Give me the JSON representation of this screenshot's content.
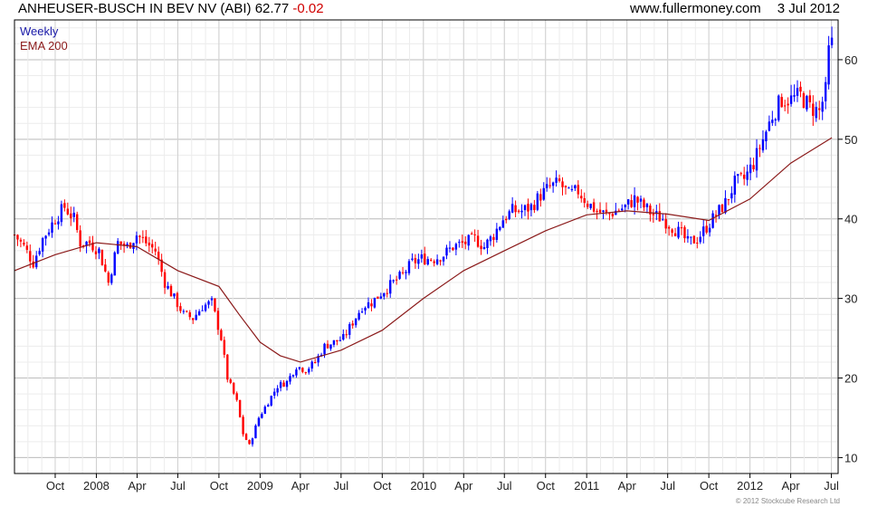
{
  "header": {
    "title": "ANHEUSER-BUSCH IN BEV NV (ABI) 62.77",
    "change": "-0.02",
    "site": "www.fullermoney.com",
    "date": "3 Jul 2012"
  },
  "copyright": "© 2012 Stockcube Research Ltd",
  "colors": {
    "up": "#0000ff",
    "down": "#ff0000",
    "ema": "#8b1a1a",
    "grid": "#d9d9d9",
    "frame": "#000000"
  },
  "chart_data": {
    "type": "candlestick",
    "interval": "Weekly",
    "grid": true,
    "legend_position": "top-left",
    "y_axis_side": "right",
    "ylim": [
      8,
      65
    ],
    "y_ticks": [
      10,
      20,
      30,
      40,
      50,
      60
    ],
    "x_range": [
      "2007-07-02",
      "2012-07-16"
    ],
    "x_ticks": [
      {
        "date": "2007-10-01",
        "label": "Oct"
      },
      {
        "date": "2008-01-01",
        "label": "2008"
      },
      {
        "date": "2008-04-01",
        "label": "Apr"
      },
      {
        "date": "2008-07-01",
        "label": "Jul"
      },
      {
        "date": "2008-10-01",
        "label": "Oct"
      },
      {
        "date": "2009-01-01",
        "label": "2009"
      },
      {
        "date": "2009-04-01",
        "label": "Apr"
      },
      {
        "date": "2009-07-01",
        "label": "Jul"
      },
      {
        "date": "2009-10-01",
        "label": "Oct"
      },
      {
        "date": "2010-01-01",
        "label": "2010"
      },
      {
        "date": "2010-04-01",
        "label": "Apr"
      },
      {
        "date": "2010-07-01",
        "label": "Jul"
      },
      {
        "date": "2010-10-01",
        "label": "Oct"
      },
      {
        "date": "2011-01-01",
        "label": "2011"
      },
      {
        "date": "2011-04-01",
        "label": "Apr"
      },
      {
        "date": "2011-07-01",
        "label": "Jul"
      },
      {
        "date": "2011-10-01",
        "label": "Oct"
      },
      {
        "date": "2012-01-01",
        "label": "2012"
      },
      {
        "date": "2012-04-01",
        "label": "Apr"
      },
      {
        "date": "2012-07-01",
        "label": "Jul"
      }
    ],
    "series": [
      {
        "name": "Weekly",
        "kind": "close",
        "points": [
          [
            "2007-07-02",
            38.0
          ],
          [
            "2007-07-23",
            36.5
          ],
          [
            "2007-08-13",
            34.5
          ],
          [
            "2007-09-03",
            37.5
          ],
          [
            "2007-10-01",
            40.0
          ],
          [
            "2007-10-22",
            41.5
          ],
          [
            "2007-11-12",
            40.0
          ],
          [
            "2007-11-26",
            37.0
          ],
          [
            "2007-12-17",
            37.0
          ],
          [
            "2008-01-07",
            36.0
          ],
          [
            "2008-01-28",
            32.0
          ],
          [
            "2008-02-18",
            37.0
          ],
          [
            "2008-03-10",
            36.5
          ],
          [
            "2008-03-31",
            38.0
          ],
          [
            "2008-04-21",
            37.0
          ],
          [
            "2008-05-12",
            36.0
          ],
          [
            "2008-06-02",
            32.0
          ],
          [
            "2008-06-23",
            30.0
          ],
          [
            "2008-07-14",
            28.0
          ],
          [
            "2008-08-04",
            27.5
          ],
          [
            "2008-08-25",
            29.0
          ],
          [
            "2008-09-15",
            29.5
          ],
          [
            "2008-10-06",
            25.0
          ],
          [
            "2008-10-20",
            20.0
          ],
          [
            "2008-11-10",
            17.0
          ],
          [
            "2008-11-24",
            13.0
          ],
          [
            "2008-12-08",
            11.5
          ],
          [
            "2008-12-29",
            15.0
          ],
          [
            "2009-01-19",
            17.0
          ],
          [
            "2009-02-09",
            19.0
          ],
          [
            "2009-03-02",
            19.5
          ],
          [
            "2009-03-23",
            21.5
          ],
          [
            "2009-04-13",
            21.0
          ],
          [
            "2009-05-04",
            22.0
          ],
          [
            "2009-05-25",
            24.0
          ],
          [
            "2009-06-15",
            24.5
          ],
          [
            "2009-07-06",
            25.0
          ],
          [
            "2009-07-27",
            27.0
          ],
          [
            "2009-08-17",
            29.0
          ],
          [
            "2009-09-07",
            29.5
          ],
          [
            "2009-10-05",
            31.0
          ],
          [
            "2009-10-26",
            32.0
          ],
          [
            "2009-11-16",
            33.0
          ],
          [
            "2009-12-07",
            34.5
          ],
          [
            "2009-12-28",
            35.0
          ],
          [
            "2010-01-25",
            35.0
          ],
          [
            "2010-02-15",
            35.5
          ],
          [
            "2010-03-08",
            36.5
          ],
          [
            "2010-04-05",
            37.0
          ],
          [
            "2010-04-26",
            37.5
          ],
          [
            "2010-05-17",
            36.5
          ],
          [
            "2010-06-07",
            38.0
          ],
          [
            "2010-06-28",
            40.0
          ],
          [
            "2010-07-19",
            41.0
          ],
          [
            "2010-08-09",
            41.0
          ],
          [
            "2010-08-30",
            41.5
          ],
          [
            "2010-09-20",
            43.0
          ],
          [
            "2010-10-11",
            44.0
          ],
          [
            "2010-11-01",
            44.5
          ],
          [
            "2010-11-22",
            43.0
          ],
          [
            "2010-12-13",
            43.5
          ],
          [
            "2011-01-03",
            42.0
          ],
          [
            "2011-01-24",
            41.0
          ],
          [
            "2011-02-14",
            40.5
          ],
          [
            "2011-03-07",
            41.0
          ],
          [
            "2011-03-28",
            41.5
          ],
          [
            "2011-04-18",
            42.5
          ],
          [
            "2011-05-09",
            41.5
          ],
          [
            "2011-05-30",
            40.5
          ],
          [
            "2011-06-20",
            40.0
          ],
          [
            "2011-07-11",
            39.0
          ],
          [
            "2011-08-01",
            38.0
          ],
          [
            "2011-08-15",
            37.0
          ],
          [
            "2011-09-05",
            37.5
          ],
          [
            "2011-09-26",
            39.0
          ],
          [
            "2011-10-17",
            40.5
          ],
          [
            "2011-11-07",
            42.0
          ],
          [
            "2011-11-28",
            44.5
          ],
          [
            "2011-12-19",
            45.0
          ],
          [
            "2012-01-09",
            47.0
          ],
          [
            "2012-01-30",
            50.0
          ],
          [
            "2012-02-20",
            53.0
          ],
          [
            "2012-03-12",
            55.0
          ],
          [
            "2012-04-02",
            55.0
          ],
          [
            "2012-04-23",
            55.5
          ],
          [
            "2012-05-14",
            54.0
          ],
          [
            "2012-06-04",
            53.5
          ],
          [
            "2012-06-18",
            56.0
          ],
          [
            "2012-06-25",
            61.0
          ],
          [
            "2012-07-02",
            62.77
          ]
        ]
      },
      {
        "name": "EMA 200",
        "kind": "line",
        "points": [
          [
            "2007-07-02",
            33.5
          ],
          [
            "2007-10-01",
            35.5
          ],
          [
            "2008-01-01",
            37.0
          ],
          [
            "2008-04-01",
            36.5
          ],
          [
            "2008-07-01",
            33.5
          ],
          [
            "2008-10-01",
            31.5
          ],
          [
            "2008-11-15",
            28.0
          ],
          [
            "2009-01-01",
            24.5
          ],
          [
            "2009-02-15",
            22.8
          ],
          [
            "2009-04-01",
            22.0
          ],
          [
            "2009-07-01",
            23.5
          ],
          [
            "2009-10-01",
            26.0
          ],
          [
            "2010-01-01",
            30.0
          ],
          [
            "2010-04-01",
            33.5
          ],
          [
            "2010-07-01",
            36.0
          ],
          [
            "2010-10-01",
            38.5
          ],
          [
            "2011-01-01",
            40.5
          ],
          [
            "2011-04-01",
            41.0
          ],
          [
            "2011-07-01",
            40.6
          ],
          [
            "2011-10-01",
            39.8
          ],
          [
            "2012-01-01",
            42.5
          ],
          [
            "2012-04-01",
            47.0
          ],
          [
            "2012-07-02",
            50.2
          ]
        ]
      }
    ]
  }
}
